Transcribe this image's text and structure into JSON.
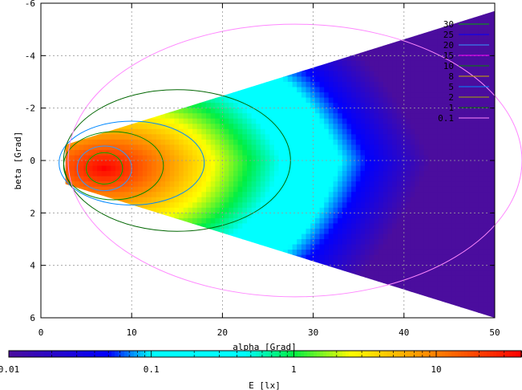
{
  "chart_data": {
    "type": "heatmap",
    "xlabel": "alpha [Grad]",
    "ylabel": "beta [Grad]",
    "xlim": [
      0,
      50
    ],
    "ylim": [
      6,
      -6
    ],
    "x_ticks": [
      "0",
      "10",
      "20",
      "30",
      "40",
      "50"
    ],
    "y_ticks": [
      "-6",
      "-4",
      "-2",
      "0",
      "2",
      "4",
      "6"
    ],
    "grid": true,
    "colorbar": {
      "label": "E [lx]",
      "scale": "log",
      "range": [
        0.01,
        40
      ],
      "ticks": [
        "0.01",
        "0.1",
        "1",
        "10"
      ]
    },
    "legend_position": "top-right",
    "contour_levels": [
      {
        "label": "30",
        "color": "#00aa00"
      },
      {
        "label": "25",
        "color": "#0000ff"
      },
      {
        "label": "20",
        "color": "#3399ff"
      },
      {
        "label": "15",
        "color": "#ff00ff"
      },
      {
        "label": "10",
        "color": "#008800"
      },
      {
        "label": "8",
        "color": "#ccaa00"
      },
      {
        "label": "5",
        "color": "#0088ff"
      },
      {
        "label": "2",
        "color": "#aaaa00"
      },
      {
        "label": "1",
        "color": "#006600"
      },
      {
        "label": "0.1",
        "color": "#ff88ff"
      }
    ],
    "field": {
      "peak_x": 7,
      "peak_y": 0.3,
      "peak_value": 40,
      "data_start_x": 2.7,
      "cone_boundary_at_x50": [
        -5.7,
        6.0
      ]
    },
    "contours": [
      {
        "level": "30",
        "center": [
          7,
          0.3
        ],
        "radius_x": 2.0,
        "radius_y": 0.6
      },
      {
        "level": "20",
        "center": [
          7,
          0.3
        ],
        "radius_x": 3.0,
        "radius_y": 0.85
      },
      {
        "level": "10",
        "center": [
          8,
          0.2
        ],
        "radius_x": 5.5,
        "radius_y": 1.3
      },
      {
        "level": "5",
        "center": [
          10,
          0.1
        ],
        "radius_x": 8.0,
        "radius_y": 1.6
      },
      {
        "level": "1",
        "center": [
          15,
          0.0
        ],
        "radius_x": 12.5,
        "radius_y": 2.7
      },
      {
        "level": "0.1",
        "center": [
          28,
          0.0
        ],
        "radius_x": 25.0,
        "radius_y": 5.2
      }
    ],
    "colors": {
      "c0": "#4b0d9e",
      "c1": "#0000ff",
      "c2": "#00ffff",
      "c3": "#00ee44",
      "c4": "#ffff00",
      "c5": "#ff0000"
    }
  }
}
